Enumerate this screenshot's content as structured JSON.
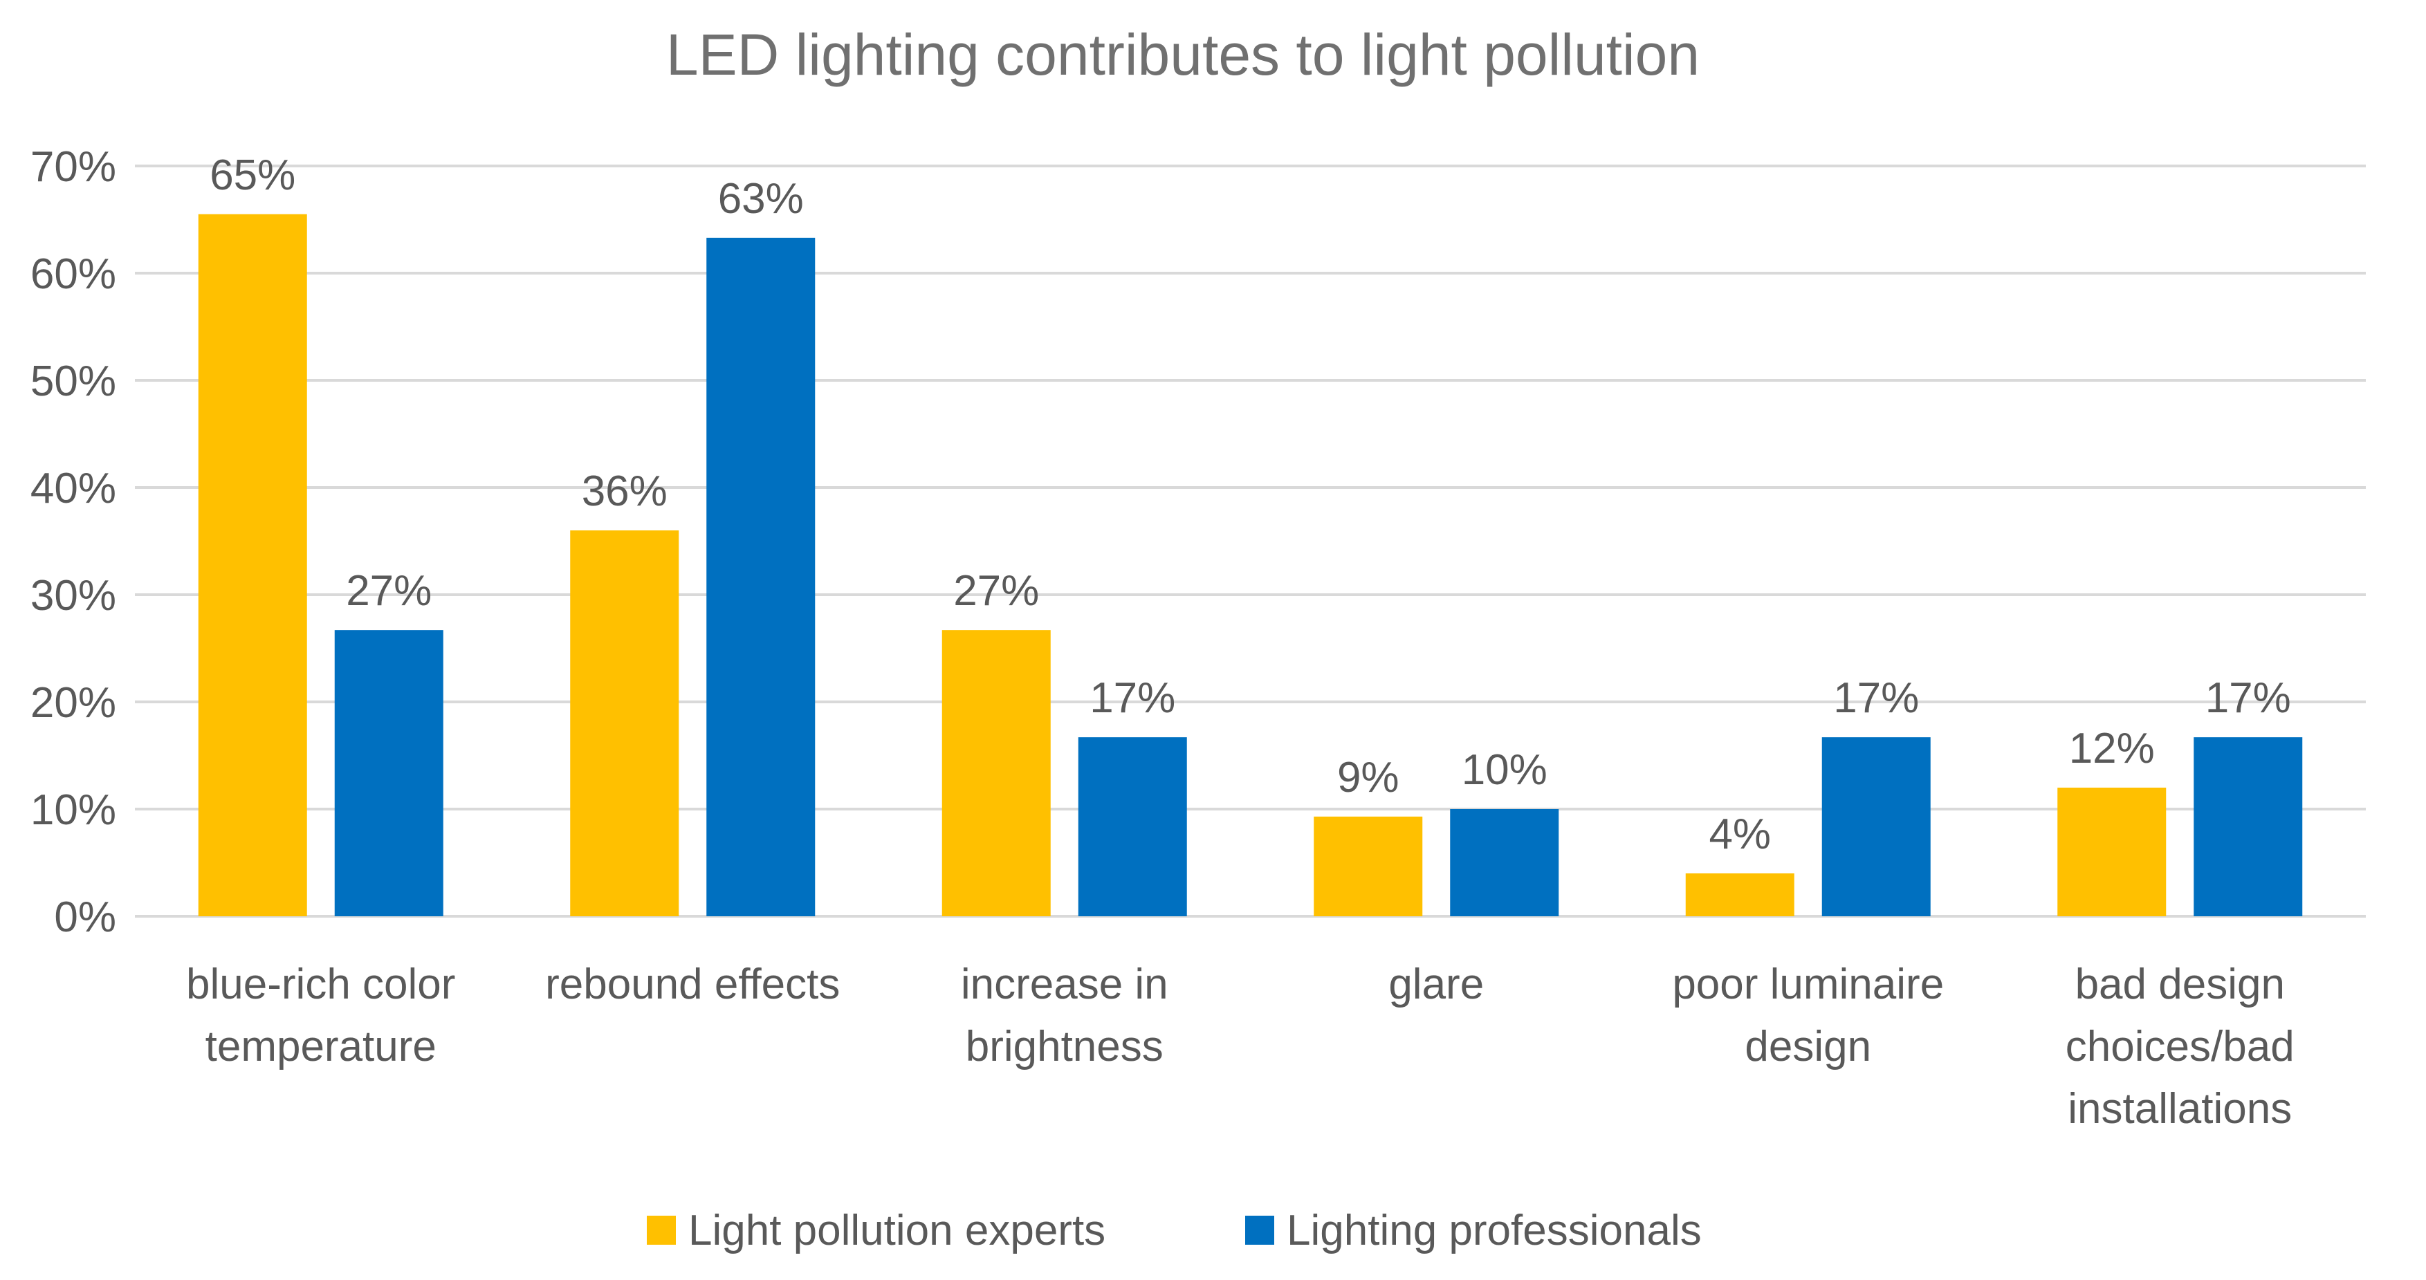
{
  "chart_data": {
    "type": "bar",
    "title": "LED lighting contributes to light pollution",
    "xlabel": "",
    "ylabel": "",
    "ylim": [
      0,
      70
    ],
    "yticks": [
      0,
      10,
      20,
      30,
      40,
      50,
      60,
      70
    ],
    "ytick_labels": [
      "0%",
      "10%",
      "20%",
      "30%",
      "40%",
      "50%",
      "60%",
      "70%"
    ],
    "grid": true,
    "legend_position": "bottom",
    "categories": [
      [
        "blue-rich color",
        "temperature"
      ],
      [
        "rebound effects"
      ],
      [
        "increase in",
        "brightness"
      ],
      [
        "glare"
      ],
      [
        "poor luminaire",
        "design"
      ],
      [
        "bad design",
        "choices/bad",
        "installations"
      ]
    ],
    "series": [
      {
        "name": "Light pollution experts",
        "color": "#FFC000",
        "values": [
          65.5,
          36,
          26.7,
          9.3,
          4,
          12
        ],
        "labels": [
          "65%",
          "36%",
          "27%",
          "9%",
          "4%",
          "12%"
        ]
      },
      {
        "name": "Lighting professionals",
        "color": "#0070C0",
        "values": [
          26.7,
          63.3,
          16.7,
          10,
          16.7,
          16.7
        ],
        "labels": [
          "27%",
          "63%",
          "17%",
          "10%",
          "17%",
          "17%"
        ]
      }
    ]
  }
}
